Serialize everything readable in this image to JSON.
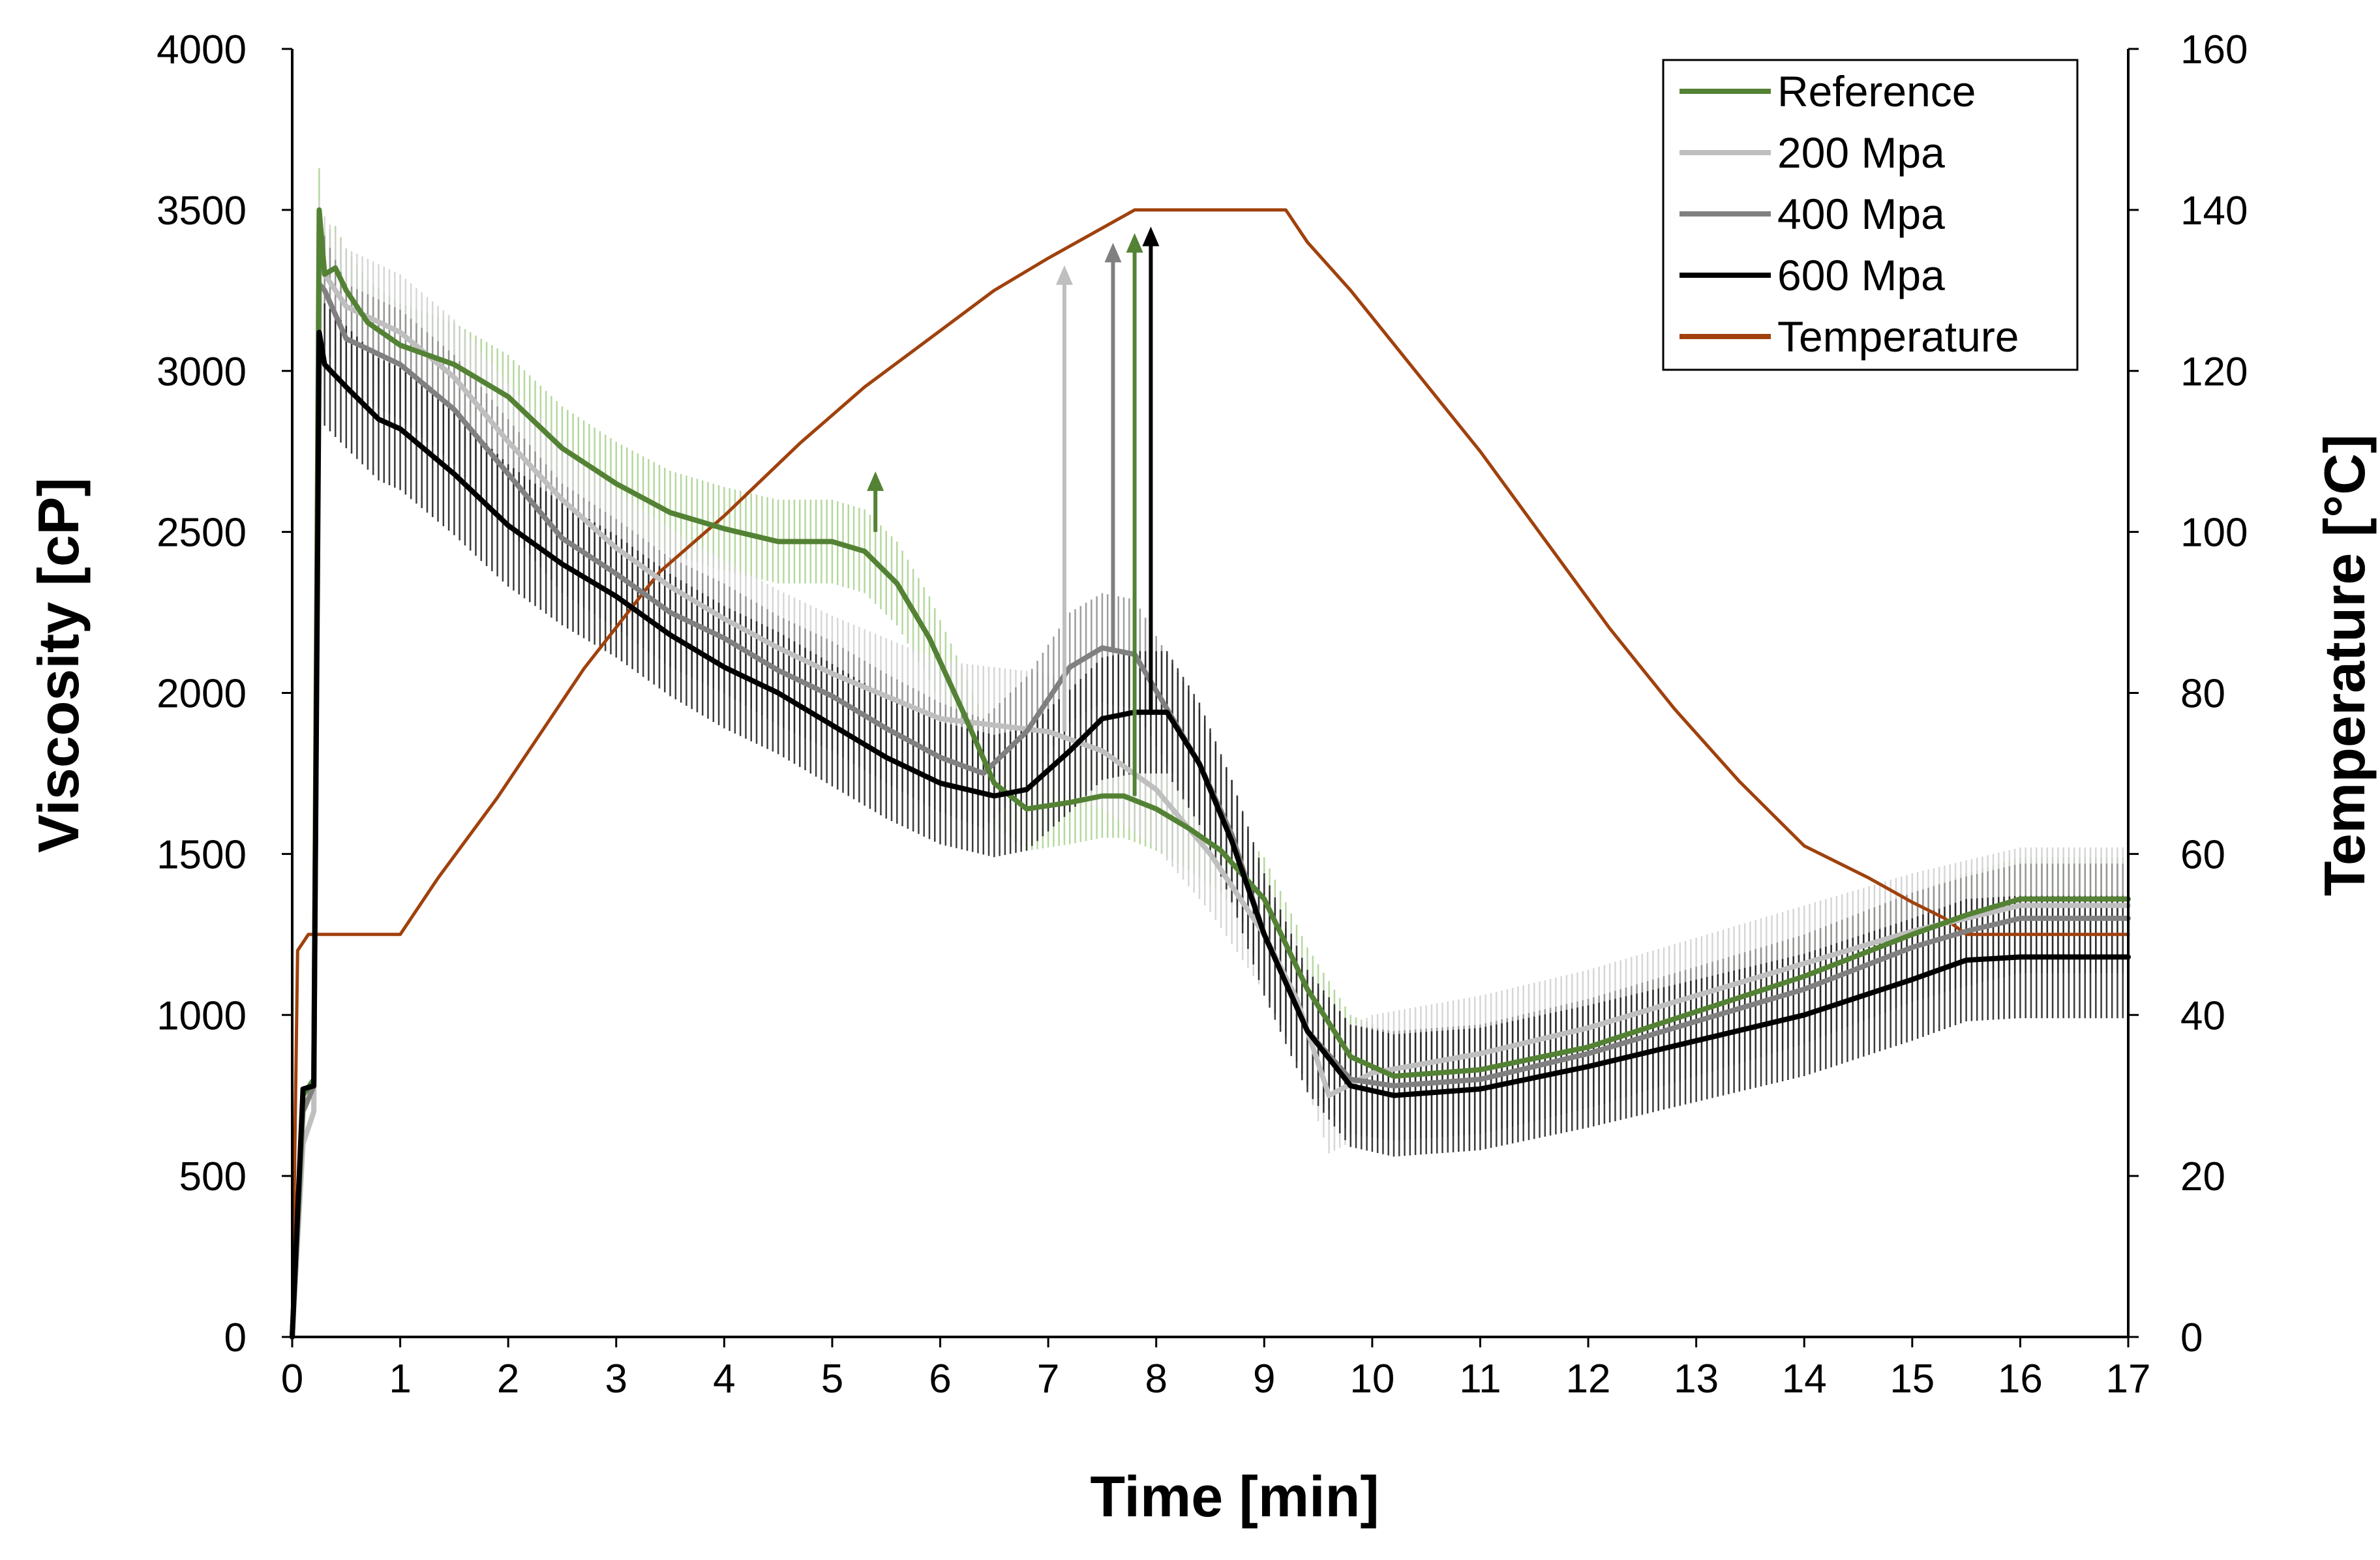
{
  "chart_data": {
    "type": "line",
    "xlabel": "Time [min]",
    "ylabel": "Viscosity [cP]",
    "y2label": "Temperature [°C]",
    "xlim": [
      0,
      17
    ],
    "ylim": [
      0,
      4000
    ],
    "y2lim": [
      0,
      160
    ],
    "x_ticks": [
      "0",
      "1",
      "2",
      "3",
      "4",
      "5",
      "6",
      "7",
      "8",
      "9",
      "10",
      "11",
      "12",
      "13",
      "14",
      "15",
      "16",
      "17"
    ],
    "y_ticks": [
      "0",
      "500",
      "1000",
      "1500",
      "2000",
      "2500",
      "3000",
      "3500",
      "4000"
    ],
    "y2_ticks": [
      "0",
      "20",
      "40",
      "60",
      "80",
      "100",
      "120",
      "140",
      "160"
    ],
    "legend_position": "top-right",
    "series": [
      {
        "name": "Reference",
        "axis": "left",
        "color": "#548235",
        "error_bar_color": "#a9d18e",
        "x": [
          0,
          0.1,
          0.2,
          0.25,
          0.3,
          0.4,
          0.5,
          0.7,
          1.0,
          1.5,
          2.0,
          2.5,
          3.0,
          3.5,
          4.0,
          4.5,
          5.0,
          5.3,
          5.6,
          5.9,
          6.2,
          6.5,
          6.8,
          7.2,
          7.5,
          7.7,
          8.0,
          8.3,
          8.6,
          9.0,
          9.4,
          9.8,
          10.2,
          11.0,
          12.0,
          13.0,
          14.0,
          15.0,
          15.5,
          16.0,
          17.0
        ],
        "values": [
          0,
          750,
          800,
          3500,
          3300,
          3320,
          3250,
          3150,
          3080,
          3020,
          2920,
          2760,
          2650,
          2560,
          2510,
          2470,
          2470,
          2440,
          2340,
          2170,
          1950,
          1720,
          1640,
          1660,
          1680,
          1680,
          1640,
          1580,
          1510,
          1360,
          1080,
          870,
          810,
          830,
          900,
          1010,
          1120,
          1250,
          1310,
          1360,
          1360
        ],
        "err": 130
      },
      {
        "name": "200 Mpa",
        "axis": "left",
        "color": "#bfbfbf",
        "error_bar_color": "#d0d0d0",
        "x": [
          0,
          0.1,
          0.2,
          0.25,
          0.3,
          0.5,
          1.0,
          1.5,
          2.0,
          2.5,
          3.0,
          3.5,
          4.0,
          4.5,
          5.0,
          5.5,
          6.0,
          6.5,
          7.0,
          7.5,
          8.0,
          8.5,
          9.0,
          9.3,
          9.6,
          10.0,
          10.5,
          11.0,
          12.0,
          13.0,
          14.0,
          15.0,
          16.0,
          17.0
        ],
        "values": [
          0,
          600,
          700,
          3350,
          3300,
          3200,
          3120,
          2980,
          2780,
          2600,
          2450,
          2330,
          2230,
          2140,
          2060,
          1990,
          1920,
          1900,
          1880,
          1820,
          1700,
          1500,
          1250,
          1050,
          750,
          820,
          850,
          880,
          960,
          1060,
          1160,
          1260,
          1340,
          1340
        ],
        "err": 180
      },
      {
        "name": "400 Mpa",
        "axis": "left",
        "color": "#808080",
        "error_bar_color": "#8c8c8c",
        "x": [
          0,
          0.1,
          0.2,
          0.25,
          0.3,
          0.5,
          1.0,
          1.5,
          2.0,
          2.5,
          3.0,
          3.5,
          4.0,
          4.5,
          5.0,
          5.5,
          6.0,
          6.4,
          6.8,
          7.2,
          7.5,
          7.8,
          8.1,
          8.4,
          8.7,
          9.0,
          9.4,
          9.8,
          10.2,
          11.0,
          12.0,
          13.0,
          14.0,
          15.0,
          15.5,
          16.0,
          17.0
        ],
        "values": [
          0,
          700,
          780,
          3270,
          3250,
          3100,
          3020,
          2880,
          2680,
          2480,
          2370,
          2250,
          2170,
          2070,
          1990,
          1890,
          1800,
          1750,
          1880,
          2080,
          2140,
          2120,
          1950,
          1780,
          1560,
          1250,
          950,
          800,
          780,
          800,
          880,
          980,
          1080,
          1210,
          1260,
          1300,
          1300
        ],
        "err": 170
      },
      {
        "name": "600 Mpa",
        "axis": "left",
        "color": "#000000",
        "error_bar_color": "#1a1a1a",
        "x": [
          0,
          0.1,
          0.2,
          0.25,
          0.3,
          0.5,
          0.8,
          1.0,
          1.5,
          2.0,
          2.5,
          3.0,
          3.5,
          4.0,
          4.5,
          5.0,
          5.5,
          6.0,
          6.5,
          6.8,
          7.2,
          7.5,
          7.8,
          8.1,
          8.4,
          8.7,
          9.0,
          9.4,
          9.8,
          10.2,
          11.0,
          12.0,
          13.0,
          14.0,
          15.0,
          15.5,
          16.0,
          17.0
        ],
        "values": [
          0,
          770,
          780,
          3120,
          3020,
          2950,
          2850,
          2820,
          2680,
          2520,
          2400,
          2300,
          2180,
          2080,
          2000,
          1900,
          1800,
          1720,
          1680,
          1700,
          1820,
          1920,
          1940,
          1940,
          1780,
          1540,
          1250,
          950,
          780,
          750,
          770,
          840,
          920,
          1000,
          1110,
          1170,
          1180,
          1180
        ],
        "err": 190
      },
      {
        "name": "Temperature",
        "axis": "right",
        "color": "#a0410d",
        "x": [
          0,
          0.05,
          0.15,
          1.0,
          1.35,
          1.9,
          2.7,
          3.4,
          4.0,
          4.7,
          5.3,
          5.9,
          6.5,
          7.0,
          7.4,
          7.8,
          8.2,
          8.6,
          9.0,
          9.2,
          9.4,
          9.8,
          10.4,
          11.0,
          11.6,
          12.2,
          12.8,
          13.4,
          14.0,
          14.6,
          15.0,
          15.3,
          15.5,
          16.0,
          17.0
        ],
        "values": [
          0,
          48,
          50,
          50,
          57,
          67,
          83,
          95,
          102,
          111,
          118,
          124,
          130,
          134,
          137,
          140,
          140,
          140,
          140,
          140,
          136,
          130,
          120,
          110,
          99,
          88,
          78,
          69,
          61,
          57,
          54,
          52,
          50,
          50,
          50
        ]
      }
    ],
    "annotations": [
      {
        "type": "arrow",
        "x": 5.4,
        "y_from": 2500,
        "y_to": 2680,
        "color": "#548235"
      },
      {
        "type": "arrow",
        "x": 7.15,
        "y_from": 1880,
        "y_to": 3320,
        "color": "#bfbfbf"
      },
      {
        "type": "arrow",
        "x": 7.6,
        "y_from": 2140,
        "y_to": 3390,
        "color": "#808080"
      },
      {
        "type": "arrow",
        "x": 7.8,
        "y_from": 1680,
        "y_to": 3420,
        "color": "#548235"
      },
      {
        "type": "arrow",
        "x": 7.95,
        "y_from": 1940,
        "y_to": 3440,
        "color": "#000000"
      }
    ]
  }
}
